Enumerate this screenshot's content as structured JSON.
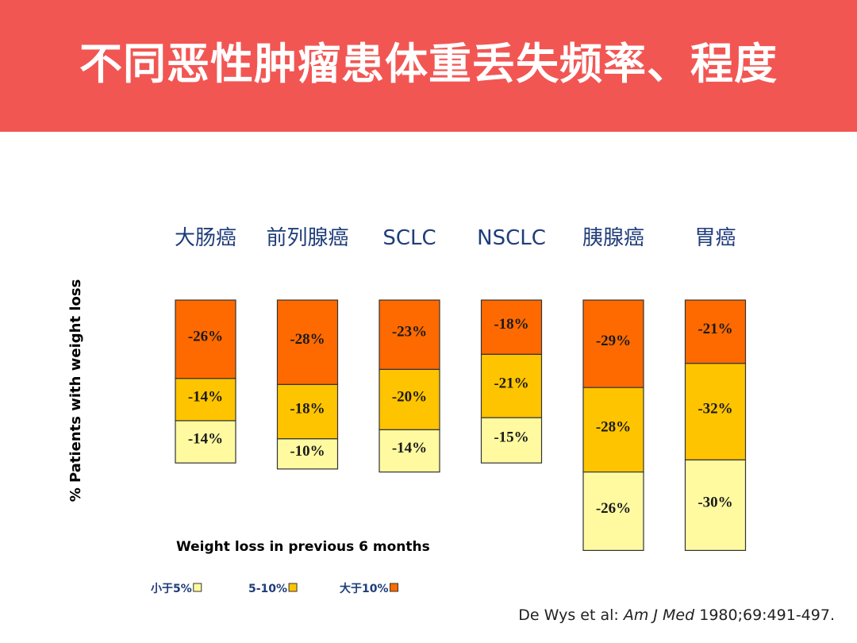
{
  "header": {
    "title": "不同恶性肿瘤患体重丢失频率、程度"
  },
  "chart_data": {
    "type": "bar",
    "stacked": true,
    "ylabel": "% Patients with weight loss",
    "xlabel": "Weight loss in previous 6 months",
    "categories": [
      "大肠癌",
      "前列腺癌",
      "SCLC",
      "NSCLC",
      "胰腺癌",
      "胃癌"
    ],
    "series": [
      {
        "name": "大于10%",
        "color": "#ff6a00",
        "values": [
          26,
          28,
          23,
          18,
          29,
          21
        ],
        "labels": [
          "-26%",
          "-28%",
          "-23%",
          "-18%",
          "-29%",
          "-21%"
        ]
      },
      {
        "name": "5-10%",
        "color": "#ffc400",
        "values": [
          14,
          18,
          20,
          21,
          28,
          32
        ],
        "labels": [
          "-14%",
          "-18%",
          "-20%",
          "-21%",
          "-28%",
          "-32%"
        ]
      },
      {
        "name": "小于5%",
        "color": "#fffaa0",
        "values": [
          14,
          10,
          14,
          15,
          26,
          30
        ],
        "labels": [
          "-14%",
          "-10%",
          "-14%",
          "-15%",
          "-26%",
          "-30%"
        ]
      }
    ],
    "legend": {
      "placement": "bottom-left",
      "items": [
        {
          "label": "小于5%",
          "color": "#fffaa0"
        },
        {
          "label": "5-10%",
          "color": "#ffc400"
        },
        {
          "label": "大于10%",
          "color": "#ff6a00"
        }
      ]
    }
  },
  "citation": {
    "authors": "De Wys et al: ",
    "journal": "Am J Med",
    "details": " 1980;69:491-497."
  }
}
